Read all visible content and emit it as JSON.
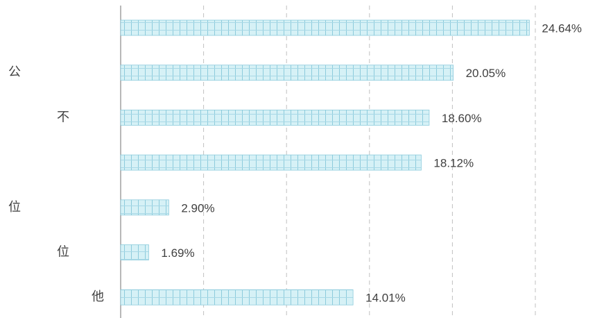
{
  "chart_data": {
    "type": "barh",
    "categories": [
      null,
      "公",
      "不",
      null,
      "位",
      "位",
      "他"
    ],
    "values": [
      24.64,
      20.05,
      18.6,
      18.12,
      2.9,
      1.69,
      14.01
    ],
    "value_labels": [
      "24.64%",
      "20.05%",
      "18.60%",
      "18.12%",
      "2.90%",
      "1.69%",
      "14.01%"
    ],
    "color": "#d6f1f6",
    "xlim": [
      0,
      25
    ],
    "xticks": [
      0,
      5,
      10,
      15,
      20,
      25
    ],
    "grid": true
  }
}
